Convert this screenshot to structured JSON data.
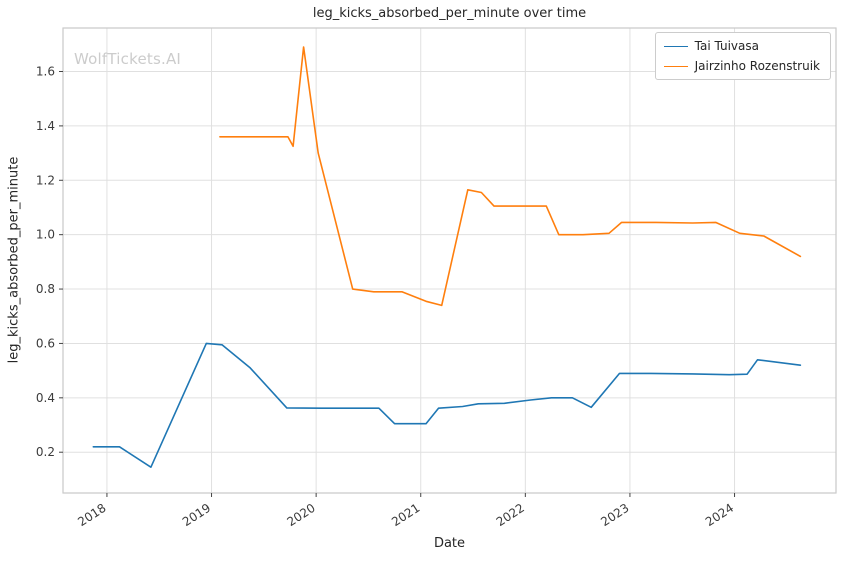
{
  "figure": {
    "watermark": "WolfTickets.AI"
  },
  "chart_data": {
    "type": "line",
    "title": "leg_kicks_absorbed_per_minute over time",
    "xlabel": "Date",
    "ylabel": "leg_kicks_absorbed_per_minute",
    "xlim": [
      2017.58,
      2024.97
    ],
    "ylim": [
      0.05,
      1.76
    ],
    "xticks": [
      2018,
      2019,
      2020,
      2021,
      2022,
      2023,
      2024
    ],
    "yticks": [
      0.2,
      0.4,
      0.6,
      0.8,
      1.0,
      1.2,
      1.4,
      1.6
    ],
    "grid": true,
    "legend_position": "upper right",
    "series": [
      {
        "name": "Tai Tuivasa",
        "color": "#1f77b4",
        "x": [
          2017.87,
          2018.12,
          2018.42,
          2018.95,
          2019.1,
          2019.37,
          2019.72,
          2020.05,
          2020.6,
          2020.75,
          2021.05,
          2021.17,
          2021.4,
          2021.55,
          2021.8,
          2022.05,
          2022.25,
          2022.45,
          2022.63,
          2022.9,
          2023.2,
          2023.6,
          2023.95,
          2024.12,
          2024.22,
          2024.63
        ],
        "y": [
          0.22,
          0.22,
          0.145,
          0.6,
          0.595,
          0.51,
          0.363,
          0.362,
          0.362,
          0.305,
          0.305,
          0.362,
          0.368,
          0.378,
          0.38,
          0.392,
          0.4,
          0.4,
          0.365,
          0.49,
          0.49,
          0.488,
          0.485,
          0.487,
          0.54,
          0.52
        ]
      },
      {
        "name": "Jairzinho Rozenstruik",
        "color": "#ff7f0e",
        "x": [
          2019.08,
          2019.5,
          2019.73,
          2019.78,
          2019.88,
          2020.02,
          2020.35,
          2020.55,
          2020.82,
          2021.05,
          2021.2,
          2021.45,
          2021.58,
          2021.7,
          2021.95,
          2022.2,
          2022.32,
          2022.55,
          2022.8,
          2022.92,
          2023.25,
          2023.6,
          2023.82,
          2024.05,
          2024.28,
          2024.63
        ],
        "y": [
          1.36,
          1.36,
          1.36,
          1.325,
          1.69,
          1.3,
          0.8,
          0.79,
          0.79,
          0.755,
          0.74,
          1.165,
          1.155,
          1.105,
          1.105,
          1.105,
          1.0,
          1.0,
          1.005,
          1.045,
          1.045,
          1.043,
          1.045,
          1.005,
          0.995,
          0.92
        ]
      }
    ]
  }
}
